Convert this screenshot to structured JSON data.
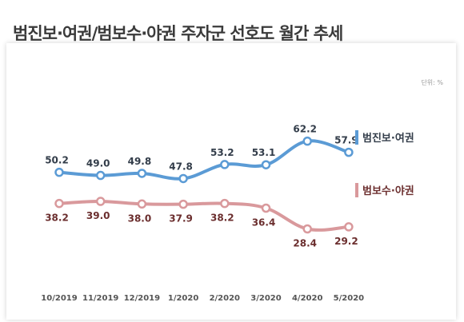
{
  "title": "범진보·여권/범보수·야권 주자군 선호도 월간 추세",
  "unit_note": "단위: %",
  "chart_data": {
    "type": "line",
    "categories": [
      "10/2019",
      "11/2019",
      "12/2019",
      "1/2020",
      "2/2020",
      "3/2020",
      "4/2020",
      "5/2020"
    ],
    "series": [
      {
        "name": "범진보·여권",
        "color": "#5b9bd5",
        "label_color": "#333d4a",
        "values": [
          50.2,
          49.0,
          49.8,
          47.8,
          53.2,
          53.1,
          62.2,
          57.9
        ]
      },
      {
        "name": "범보수·야권",
        "color": "#d9999c",
        "label_color": "#6b2e2e",
        "values": [
          38.2,
          39.0,
          38.0,
          37.9,
          38.2,
          36.4,
          28.4,
          29.2
        ]
      }
    ],
    "grid": false,
    "legend": "right"
  }
}
